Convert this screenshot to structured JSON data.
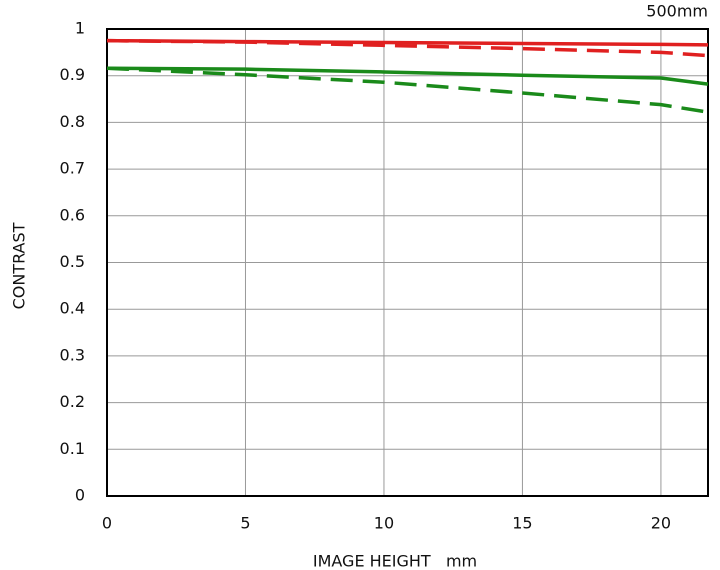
{
  "chart_data": {
    "type": "line",
    "title": "500mm",
    "xlabel": "IMAGE HEIGHT   mm",
    "ylabel": "CONTRAST",
    "x": [
      0,
      5,
      10,
      15,
      20,
      21.7
    ],
    "series": [
      {
        "color": "#e02020",
        "dash": false,
        "values": [
          0.975,
          0.973,
          0.971,
          0.969,
          0.967,
          0.966
        ]
      },
      {
        "color": "#e02020",
        "dash": true,
        "values": [
          0.975,
          0.972,
          0.965,
          0.958,
          0.95,
          0.943
        ]
      },
      {
        "color": "#1a8a1a",
        "dash": false,
        "values": [
          0.916,
          0.914,
          0.908,
          0.901,
          0.895,
          0.882
        ]
      },
      {
        "color": "#1a8a1a",
        "dash": true,
        "values": [
          0.916,
          0.902,
          0.886,
          0.863,
          0.838,
          0.822
        ]
      }
    ],
    "xlim": [
      0,
      21.7
    ],
    "ylim": [
      0,
      1
    ],
    "xticks": [
      0,
      5,
      10,
      15,
      20
    ],
    "yticks": [
      0,
      0.1,
      0.2,
      0.3,
      0.4,
      0.5,
      0.6,
      0.7,
      0.8,
      0.9,
      1
    ],
    "grid": true
  }
}
